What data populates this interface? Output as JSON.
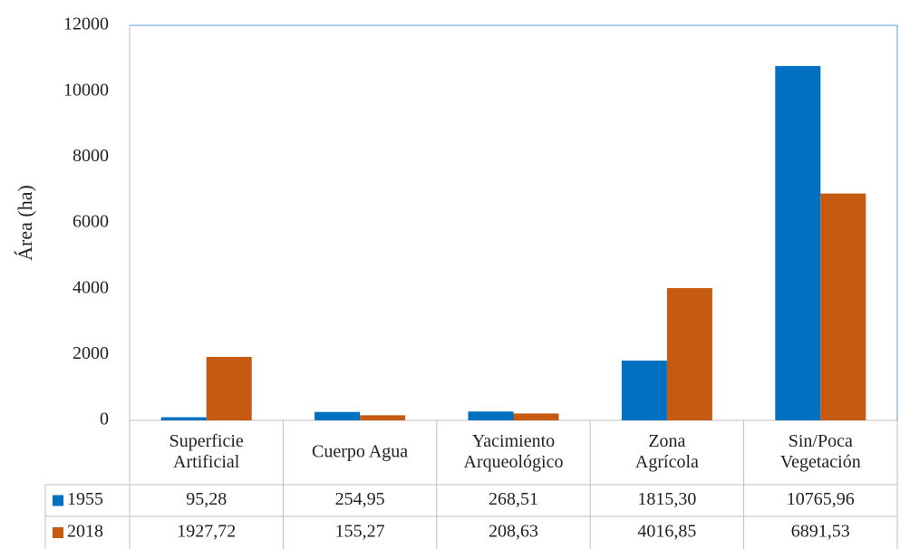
{
  "chart_data": {
    "type": "bar",
    "y_label": "Área (ha)",
    "categories": [
      [
        "Superficie",
        "Artificial"
      ],
      [
        "Cuerpo Agua"
      ],
      [
        "Yacimiento",
        "Arqueológico"
      ],
      [
        "Zona",
        "Agrícola"
      ],
      [
        "Sin/Poca",
        "Vegetación"
      ]
    ],
    "series": [
      {
        "name": "1955",
        "color": "#0070c0",
        "values": [
          95.28,
          254.95,
          268.51,
          1815.3,
          10765.96
        ],
        "value_labels": [
          "95,28",
          "254,95",
          "268,51",
          "1815,30",
          "10765,96"
        ]
      },
      {
        "name": "2018",
        "color": "#c55a11",
        "values": [
          1927.72,
          155.27,
          208.63,
          4016.85,
          6891.53
        ],
        "value_labels": [
          "1927,72",
          "155,27",
          "208,63",
          "4016,85",
          "6891,53"
        ]
      }
    ],
    "ylim": [
      0,
      12000
    ],
    "yticks": [
      0,
      2000,
      4000,
      6000,
      8000,
      10000,
      12000
    ],
    "grid": false
  }
}
